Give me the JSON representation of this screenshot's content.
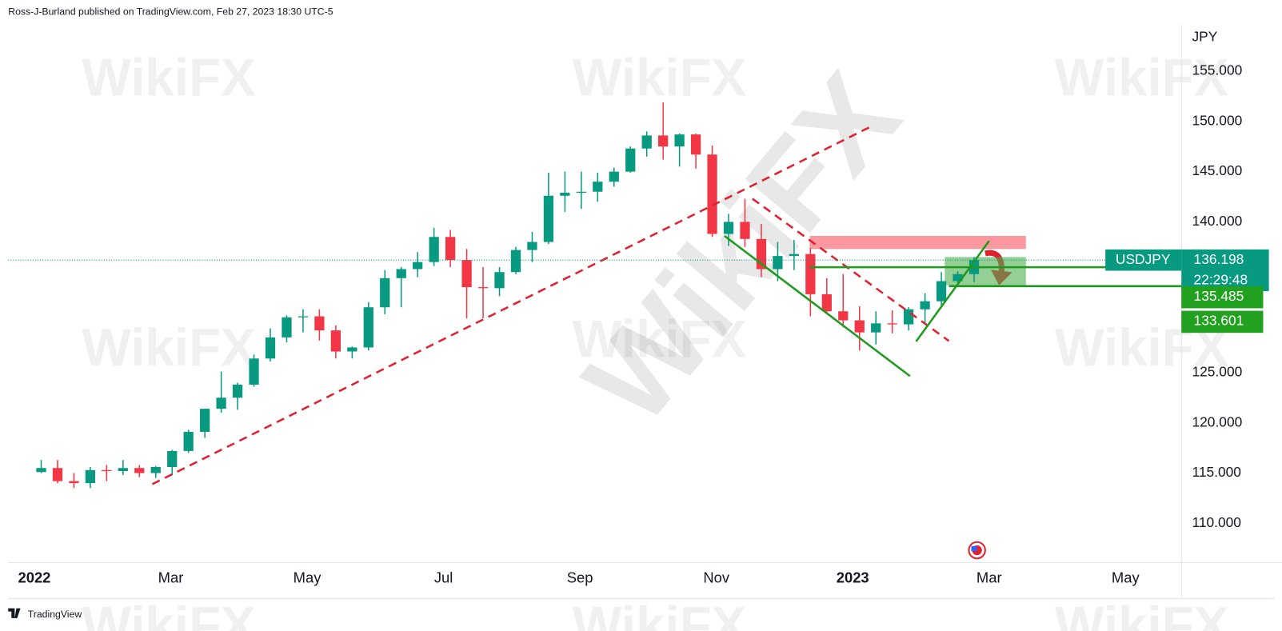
{
  "header": "Ross-J-Burland published on TradingView.com, Feb 27, 2023 18:30 UTC-5",
  "footer": "TradingView",
  "watermark": "WikiFX",
  "chart_data": {
    "type": "candlestick",
    "currency": "JPY",
    "xlim": [
      -0.384,
      16.82
    ],
    "ylim": [
      106.1,
      159.64
    ],
    "xticks": [
      {
        "value": 0,
        "label": "2022"
      },
      {
        "value": 2,
        "label": "Mar"
      },
      {
        "value": 4,
        "label": "May"
      },
      {
        "value": 6,
        "label": "Jul"
      },
      {
        "value": 8,
        "label": "Sep"
      },
      {
        "value": 10,
        "label": "Nov"
      },
      {
        "value": 12,
        "label": "2023"
      },
      {
        "value": 14,
        "label": "Mar"
      },
      {
        "value": 16,
        "label": "May"
      }
    ],
    "yticks": [
      {
        "value": 155,
        "label": "155.000"
      },
      {
        "value": 150,
        "label": "150.000"
      },
      {
        "value": 145,
        "label": "145.000"
      },
      {
        "value": 140,
        "label": "140.000"
      },
      {
        "value": 125,
        "label": "125.000"
      },
      {
        "value": 120,
        "label": "120.000"
      },
      {
        "value": 115,
        "label": "115.000"
      },
      {
        "value": 110,
        "label": "110.000"
      }
    ],
    "up_color": "#089981",
    "down_color": "#f23645",
    "x": [
      0.1,
      0.34,
      0.58,
      0.82,
      1.06,
      1.3,
      1.54,
      1.78,
      2.02,
      2.26,
      2.5,
      2.74,
      2.98,
      3.22,
      3.46,
      3.7,
      3.94,
      4.18,
      4.42,
      4.66,
      4.9,
      5.14,
      5.38,
      5.62,
      5.86,
      6.1,
      6.34,
      6.58,
      6.82,
      7.06,
      7.3,
      7.54,
      7.78,
      8.02,
      8.26,
      8.5,
      8.74,
      8.98,
      9.22,
      9.46,
      9.7,
      9.94,
      10.18,
      10.42,
      10.66,
      10.9,
      11.14,
      11.38,
      11.62,
      11.86,
      12.1,
      12.34,
      12.58,
      12.82,
      13.06,
      13.3,
      13.54,
      13.78
    ],
    "series": [
      {
        "name": "USDJPY",
        "open": [
          115.1,
          115.5,
          114.2,
          114.0,
          115.3,
          115.2,
          115.5,
          115.0,
          115.6,
          117.2,
          119.1,
          121.4,
          122.5,
          123.8,
          126.4,
          128.5,
          130.5,
          130.6,
          129.2,
          127.1,
          127.5,
          131.5,
          134.4,
          135.3,
          136.0,
          138.5,
          136.2,
          133.5,
          133.4,
          135.0,
          137.2,
          138.0,
          142.6,
          142.9,
          143.0,
          144.0,
          145.0,
          147.3,
          148.6,
          147.5,
          148.7,
          146.7,
          138.8,
          140.0,
          138.3,
          135.3,
          136.6,
          136.8,
          132.8,
          131.1,
          130.2,
          129.0,
          129.9,
          129.8,
          131.3,
          132.1,
          134.1,
          134.8
        ],
        "high": [
          116.3,
          116.3,
          115.0,
          115.6,
          115.8,
          116.3,
          115.8,
          115.7,
          117.3,
          119.3,
          121.4,
          125.1,
          124.0,
          126.8,
          129.4,
          130.7,
          131.3,
          131.3,
          129.7,
          127.6,
          132.0,
          135.2,
          135.5,
          137.0,
          139.4,
          139.2,
          137.3,
          135.5,
          135.5,
          137.5,
          139.0,
          144.9,
          145.0,
          145.0,
          144.9,
          145.4,
          147.5,
          149.0,
          151.9,
          148.8,
          148.8,
          147.6,
          140.8,
          142.3,
          139.8,
          138.0,
          138.2,
          137.4,
          134.4,
          134.8,
          131.6,
          131.1,
          131.2,
          131.5,
          132.9,
          135.0,
          135.1,
          136.5
        ],
        "low": [
          115.0,
          114.0,
          113.5,
          113.5,
          114.2,
          114.8,
          114.6,
          114.5,
          114.8,
          117.0,
          118.5,
          121.0,
          121.3,
          123.6,
          126.1,
          128.0,
          129.0,
          128.2,
          126.4,
          126.4,
          127.2,
          130.8,
          131.5,
          134.5,
          135.6,
          135.5,
          130.4,
          130.4,
          132.6,
          134.8,
          136.0,
          137.8,
          141.0,
          141.3,
          142.0,
          143.5,
          144.9,
          146.5,
          146.2,
          145.5,
          145.3,
          138.5,
          137.6,
          137.5,
          134.5,
          134.1,
          135.2,
          130.6,
          130.8,
          129.5,
          127.2,
          127.8,
          128.9,
          129.2,
          129.8,
          131.5,
          133.6,
          134.0
        ],
        "close": [
          115.5,
          114.2,
          114.0,
          115.3,
          115.2,
          115.5,
          115.0,
          115.6,
          117.2,
          119.1,
          121.4,
          122.5,
          123.8,
          126.4,
          128.5,
          130.5,
          130.6,
          129.2,
          127.1,
          127.5,
          131.5,
          134.4,
          135.3,
          136.0,
          138.5,
          136.2,
          133.5,
          133.4,
          135.0,
          137.2,
          138.0,
          142.6,
          142.9,
          143.0,
          144.0,
          145.0,
          147.3,
          148.6,
          147.5,
          148.7,
          146.7,
          138.8,
          140.0,
          138.3,
          135.3,
          136.6,
          136.8,
          132.8,
          131.1,
          130.2,
          129.0,
          129.9,
          129.8,
          131.3,
          132.1,
          134.1,
          134.8,
          136.2
        ]
      }
    ],
    "last_price": 136.198,
    "countdown": "22:29:48",
    "levels": [
      135.485,
      133.601
    ],
    "trendlines": [
      {
        "x1": 1.73,
        "y1": 113.9,
        "x2": 12.3,
        "y2": 149.6,
        "color": "#e0222e",
        "dashed": true
      },
      {
        "x1": 10.53,
        "y1": 142.3,
        "x2": 13.41,
        "y2": 128.15,
        "color": "#e0222e",
        "dashed": true
      },
      {
        "x1": 10.12,
        "y1": 138.6,
        "x2": 12.84,
        "y2": 124.65,
        "color": "#1e9a1e",
        "dashed": false
      },
      {
        "x1": 12.93,
        "y1": 128.1,
        "x2": 14.0,
        "y2": 138.1,
        "color": "#1e9a1e",
        "dashed": false
      },
      {
        "x1": 11.37,
        "y1": 135.485,
        "x2": 16.82,
        "y2": 135.485,
        "color": "#1e9a1e",
        "dashed": false
      },
      {
        "x1": 13.41,
        "y1": 133.601,
        "x2": 16.82,
        "y2": 133.601,
        "color": "#1e9a1e",
        "dashed": false
      }
    ],
    "zones": [
      {
        "x1": 11.37,
        "x2": 14.54,
        "y1": 138.6,
        "y2": 137.3,
        "color": "rgba(247,82,95,0.6)"
      },
      {
        "x1": 13.35,
        "x2": 14.54,
        "y1": 136.5,
        "y2": 133.7,
        "color": "rgba(76,175,80,0.6)"
      }
    ]
  }
}
